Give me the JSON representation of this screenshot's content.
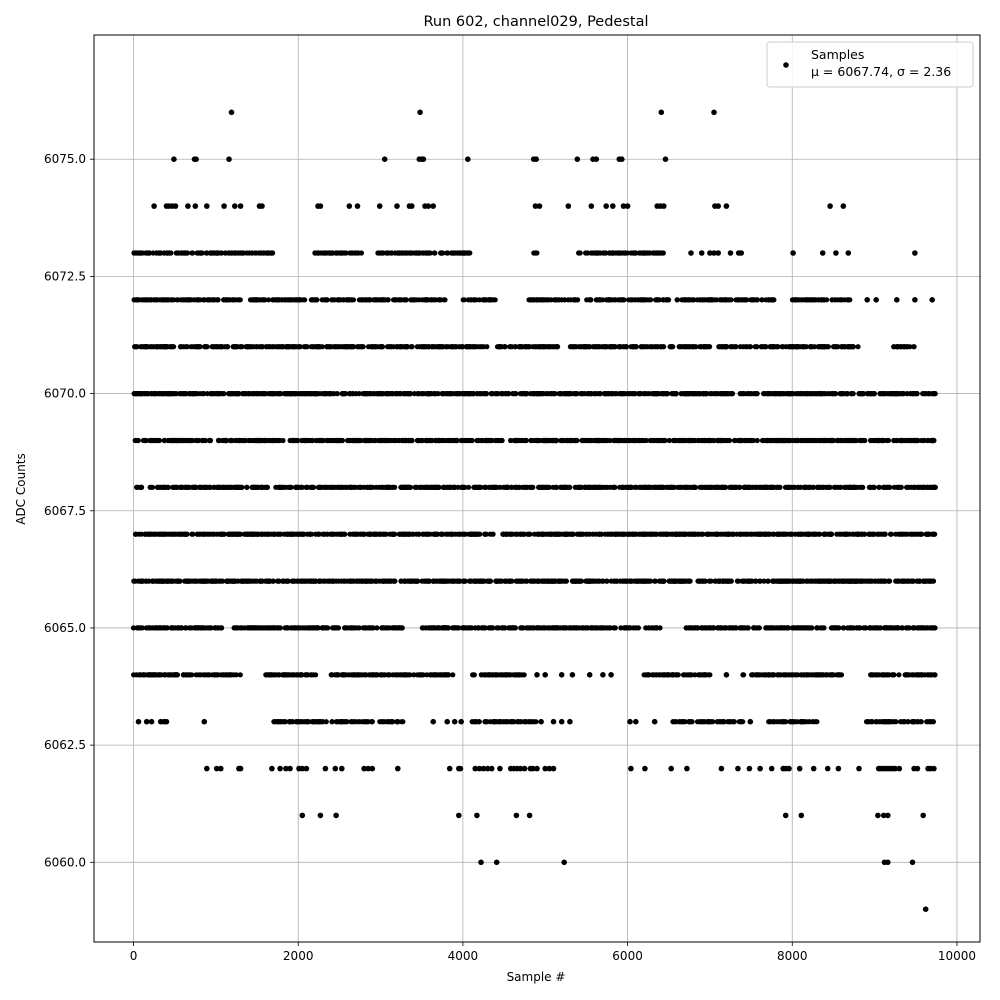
{
  "chart_data": {
    "type": "scatter",
    "title": "Run 602, channel029, Pedestal",
    "xlabel": "Sample #",
    "ylabel": "ADC Counts",
    "xlim": [
      -480,
      10280
    ],
    "ylim": [
      6058.3,
      6077.65
    ],
    "xticks": [
      0,
      2000,
      4000,
      6000,
      8000,
      10000
    ],
    "xtick_labels": [
      "0",
      "2000",
      "4000",
      "6000",
      "8000",
      "10000"
    ],
    "yticks": [
      6060.0,
      6062.5,
      6065.0,
      6067.5,
      6070.0,
      6072.5,
      6075.0
    ],
    "ytick_labels": [
      "6060.0",
      "6062.5",
      "6065.0",
      "6067.5",
      "6070.0",
      "6072.5",
      "6075.0"
    ],
    "grid": true,
    "legend_position": "top-right",
    "marker_color": "#000000",
    "series": [
      {
        "name": "Samples",
        "stats_label": "μ = 6067.74, σ = 2.36",
        "dense_levels": [
          {
            "y": 6063,
            "x_ranges": [
              [
                1700,
                3300
              ],
              [
                4100,
                4900
              ],
              [
                6550,
                7400
              ],
              [
                7700,
                8300
              ],
              [
                8900,
                9740
              ]
            ]
          },
          {
            "y": 6064,
            "x_ranges": [
              [
                0,
                1300
              ],
              [
                1600,
                2300
              ],
              [
                2400,
                3900
              ],
              [
                4100,
                4750
              ],
              [
                6200,
                7000
              ],
              [
                7400,
                8600
              ],
              [
                8950,
                9740
              ]
            ]
          },
          {
            "y": 6065,
            "x_ranges": [
              [
                0,
                1100
              ],
              [
                1200,
                3300
              ],
              [
                3500,
                6400
              ],
              [
                6700,
                9740
              ]
            ]
          },
          {
            "y": 6066,
            "x_ranges": [
              [
                0,
                9740
              ]
            ]
          },
          {
            "y": 6067,
            "x_ranges": [
              [
                0,
                9740
              ]
            ]
          },
          {
            "y": 6068,
            "x_ranges": [
              [
                0,
                9740
              ]
            ]
          },
          {
            "y": 6069,
            "x_ranges": [
              [
                0,
                9740
              ]
            ]
          },
          {
            "y": 6070,
            "x_ranges": [
              [
                0,
                9740
              ]
            ]
          },
          {
            "y": 6071,
            "x_ranges": [
              [
                0,
                4300
              ],
              [
                4400,
                5200
              ],
              [
                5300,
                7000
              ],
              [
                7100,
                8800
              ],
              [
                9200,
                9480
              ]
            ]
          },
          {
            "y": 6072,
            "x_ranges": [
              [
                0,
                1300
              ],
              [
                1400,
                3800
              ],
              [
                4000,
                4400
              ],
              [
                4800,
                5400
              ],
              [
                5500,
                6500
              ],
              [
                6600,
                7800
              ],
              [
                8000,
                8700
              ]
            ]
          },
          {
            "y": 6073,
            "x_ranges": [
              [
                0,
                1700
              ],
              [
                2200,
                2800
              ],
              [
                2900,
                4100
              ],
              [
                4850,
                4900
              ],
              [
                5400,
                6450
              ]
            ]
          }
        ],
        "points": [
          {
            "x": 1190,
            "y": 6076
          },
          {
            "x": 3480,
            "y": 6076
          },
          {
            "x": 6410,
            "y": 6076
          },
          {
            "x": 7050,
            "y": 6076
          },
          {
            "x": 490,
            "y": 6075
          },
          {
            "x": 740,
            "y": 6075
          },
          {
            "x": 760,
            "y": 6075
          },
          {
            "x": 1160,
            "y": 6075
          },
          {
            "x": 3050,
            "y": 6075
          },
          {
            "x": 3470,
            "y": 6075
          },
          {
            "x": 3500,
            "y": 6075
          },
          {
            "x": 3520,
            "y": 6075
          },
          {
            "x": 4060,
            "y": 6075
          },
          {
            "x": 4860,
            "y": 6075
          },
          {
            "x": 4890,
            "y": 6075
          },
          {
            "x": 5390,
            "y": 6075
          },
          {
            "x": 5580,
            "y": 6075
          },
          {
            "x": 5620,
            "y": 6075
          },
          {
            "x": 5900,
            "y": 6075
          },
          {
            "x": 5930,
            "y": 6075
          },
          {
            "x": 6460,
            "y": 6075
          },
          {
            "x": 250,
            "y": 6074
          },
          {
            "x": 400,
            "y": 6074
          },
          {
            "x": 430,
            "y": 6074
          },
          {
            "x": 470,
            "y": 6074
          },
          {
            "x": 510,
            "y": 6074
          },
          {
            "x": 660,
            "y": 6074
          },
          {
            "x": 750,
            "y": 6074
          },
          {
            "x": 890,
            "y": 6074
          },
          {
            "x": 1100,
            "y": 6074
          },
          {
            "x": 1230,
            "y": 6074
          },
          {
            "x": 1300,
            "y": 6074
          },
          {
            "x": 1530,
            "y": 6074
          },
          {
            "x": 1560,
            "y": 6074
          },
          {
            "x": 2240,
            "y": 6074
          },
          {
            "x": 2270,
            "y": 6074
          },
          {
            "x": 2620,
            "y": 6074
          },
          {
            "x": 2720,
            "y": 6074
          },
          {
            "x": 2990,
            "y": 6074
          },
          {
            "x": 3200,
            "y": 6074
          },
          {
            "x": 3350,
            "y": 6074
          },
          {
            "x": 3380,
            "y": 6074
          },
          {
            "x": 3540,
            "y": 6074
          },
          {
            "x": 3580,
            "y": 6074
          },
          {
            "x": 3640,
            "y": 6074
          },
          {
            "x": 4880,
            "y": 6074
          },
          {
            "x": 4930,
            "y": 6074
          },
          {
            "x": 5280,
            "y": 6074
          },
          {
            "x": 5560,
            "y": 6074
          },
          {
            "x": 5740,
            "y": 6074
          },
          {
            "x": 5820,
            "y": 6074
          },
          {
            "x": 5950,
            "y": 6074
          },
          {
            "x": 6000,
            "y": 6074
          },
          {
            "x": 6360,
            "y": 6074
          },
          {
            "x": 6400,
            "y": 6074
          },
          {
            "x": 6440,
            "y": 6074
          },
          {
            "x": 7060,
            "y": 6074
          },
          {
            "x": 7100,
            "y": 6074
          },
          {
            "x": 7200,
            "y": 6074
          },
          {
            "x": 8460,
            "y": 6074
          },
          {
            "x": 8620,
            "y": 6074
          },
          {
            "x": 6770,
            "y": 6073
          },
          {
            "x": 6900,
            "y": 6073
          },
          {
            "x": 7000,
            "y": 6073
          },
          {
            "x": 7050,
            "y": 6073
          },
          {
            "x": 7100,
            "y": 6073
          },
          {
            "x": 7250,
            "y": 6073
          },
          {
            "x": 7350,
            "y": 6073
          },
          {
            "x": 7380,
            "y": 6073
          },
          {
            "x": 8010,
            "y": 6073
          },
          {
            "x": 8370,
            "y": 6073
          },
          {
            "x": 8530,
            "y": 6073
          },
          {
            "x": 8680,
            "y": 6073
          },
          {
            "x": 9490,
            "y": 6073
          },
          {
            "x": 8910,
            "y": 6072
          },
          {
            "x": 9020,
            "y": 6072
          },
          {
            "x": 9270,
            "y": 6072
          },
          {
            "x": 9490,
            "y": 6072
          },
          {
            "x": 9700,
            "y": 6072
          },
          {
            "x": 60,
            "y": 6063
          },
          {
            "x": 160,
            "y": 6063
          },
          {
            "x": 220,
            "y": 6063
          },
          {
            "x": 330,
            "y": 6063
          },
          {
            "x": 370,
            "y": 6063
          },
          {
            "x": 400,
            "y": 6063
          },
          {
            "x": 860,
            "y": 6063
          },
          {
            "x": 3640,
            "y": 6063
          },
          {
            "x": 3810,
            "y": 6063
          },
          {
            "x": 3900,
            "y": 6063
          },
          {
            "x": 3980,
            "y": 6063
          },
          {
            "x": 4950,
            "y": 6063
          },
          {
            "x": 5100,
            "y": 6063
          },
          {
            "x": 5200,
            "y": 6063
          },
          {
            "x": 5300,
            "y": 6063
          },
          {
            "x": 6030,
            "y": 6063
          },
          {
            "x": 6100,
            "y": 6063
          },
          {
            "x": 6330,
            "y": 6063
          },
          {
            "x": 7490,
            "y": 6063
          },
          {
            "x": 4900,
            "y": 6064
          },
          {
            "x": 5000,
            "y": 6064
          },
          {
            "x": 5200,
            "y": 6064
          },
          {
            "x": 5330,
            "y": 6064
          },
          {
            "x": 5540,
            "y": 6064
          },
          {
            "x": 5700,
            "y": 6064
          },
          {
            "x": 5800,
            "y": 6064
          },
          {
            "x": 7200,
            "y": 6064
          },
          {
            "x": 890,
            "y": 6062
          },
          {
            "x": 1010,
            "y": 6062
          },
          {
            "x": 1060,
            "y": 6062
          },
          {
            "x": 1280,
            "y": 6062
          },
          {
            "x": 1300,
            "y": 6062
          },
          {
            "x": 1680,
            "y": 6062
          },
          {
            "x": 1780,
            "y": 6062
          },
          {
            "x": 1850,
            "y": 6062
          },
          {
            "x": 1900,
            "y": 6062
          },
          {
            "x": 2010,
            "y": 6062
          },
          {
            "x": 2050,
            "y": 6062
          },
          {
            "x": 2100,
            "y": 6062
          },
          {
            "x": 2330,
            "y": 6062
          },
          {
            "x": 2450,
            "y": 6062
          },
          {
            "x": 2530,
            "y": 6062
          },
          {
            "x": 2800,
            "y": 6062
          },
          {
            "x": 2850,
            "y": 6062
          },
          {
            "x": 2900,
            "y": 6062
          },
          {
            "x": 3210,
            "y": 6062
          },
          {
            "x": 3840,
            "y": 6062
          },
          {
            "x": 3950,
            "y": 6062
          },
          {
            "x": 3970,
            "y": 6062
          },
          {
            "x": 4150,
            "y": 6062
          },
          {
            "x": 4200,
            "y": 6062
          },
          {
            "x": 4250,
            "y": 6062
          },
          {
            "x": 4300,
            "y": 6062
          },
          {
            "x": 4350,
            "y": 6062
          },
          {
            "x": 4450,
            "y": 6062
          },
          {
            "x": 4580,
            "y": 6062
          },
          {
            "x": 4620,
            "y": 6062
          },
          {
            "x": 4660,
            "y": 6062
          },
          {
            "x": 4700,
            "y": 6062
          },
          {
            "x": 4750,
            "y": 6062
          },
          {
            "x": 4820,
            "y": 6062
          },
          {
            "x": 4850,
            "y": 6062
          },
          {
            "x": 4900,
            "y": 6062
          },
          {
            "x": 5000,
            "y": 6062
          },
          {
            "x": 5050,
            "y": 6062
          },
          {
            "x": 5100,
            "y": 6062
          },
          {
            "x": 6040,
            "y": 6062
          },
          {
            "x": 6210,
            "y": 6062
          },
          {
            "x": 6530,
            "y": 6062
          },
          {
            "x": 6720,
            "y": 6062
          },
          {
            "x": 7140,
            "y": 6062
          },
          {
            "x": 7340,
            "y": 6062
          },
          {
            "x": 7480,
            "y": 6062
          },
          {
            "x": 7610,
            "y": 6062
          },
          {
            "x": 7750,
            "y": 6062
          },
          {
            "x": 7890,
            "y": 6062
          },
          {
            "x": 7920,
            "y": 6062
          },
          {
            "x": 7960,
            "y": 6062
          },
          {
            "x": 8090,
            "y": 6062
          },
          {
            "x": 8260,
            "y": 6062
          },
          {
            "x": 8430,
            "y": 6062
          },
          {
            "x": 8560,
            "y": 6062
          },
          {
            "x": 8810,
            "y": 6062
          },
          {
            "x": 9050,
            "y": 6062
          },
          {
            "x": 9070,
            "y": 6062
          },
          {
            "x": 9100,
            "y": 6062
          },
          {
            "x": 9130,
            "y": 6062
          },
          {
            "x": 9160,
            "y": 6062
          },
          {
            "x": 9190,
            "y": 6062
          },
          {
            "x": 9220,
            "y": 6062
          },
          {
            "x": 9250,
            "y": 6062
          },
          {
            "x": 9300,
            "y": 6062
          },
          {
            "x": 9480,
            "y": 6062
          },
          {
            "x": 9520,
            "y": 6062
          },
          {
            "x": 9650,
            "y": 6062
          },
          {
            "x": 9680,
            "y": 6062
          },
          {
            "x": 9720,
            "y": 6062
          },
          {
            "x": 2050,
            "y": 6061
          },
          {
            "x": 2270,
            "y": 6061
          },
          {
            "x": 2460,
            "y": 6061
          },
          {
            "x": 3950,
            "y": 6061
          },
          {
            "x": 4170,
            "y": 6061
          },
          {
            "x": 4650,
            "y": 6061
          },
          {
            "x": 4810,
            "y": 6061
          },
          {
            "x": 7920,
            "y": 6061
          },
          {
            "x": 8110,
            "y": 6061
          },
          {
            "x": 9040,
            "y": 6061
          },
          {
            "x": 9110,
            "y": 6061
          },
          {
            "x": 9160,
            "y": 6061
          },
          {
            "x": 9590,
            "y": 6061
          },
          {
            "x": 4220,
            "y": 6060
          },
          {
            "x": 4410,
            "y": 6060
          },
          {
            "x": 5230,
            "y": 6060
          },
          {
            "x": 9120,
            "y": 6060
          },
          {
            "x": 9160,
            "y": 6060
          },
          {
            "x": 9460,
            "y": 6060
          },
          {
            "x": 9620,
            "y": 6059
          }
        ]
      }
    ]
  }
}
